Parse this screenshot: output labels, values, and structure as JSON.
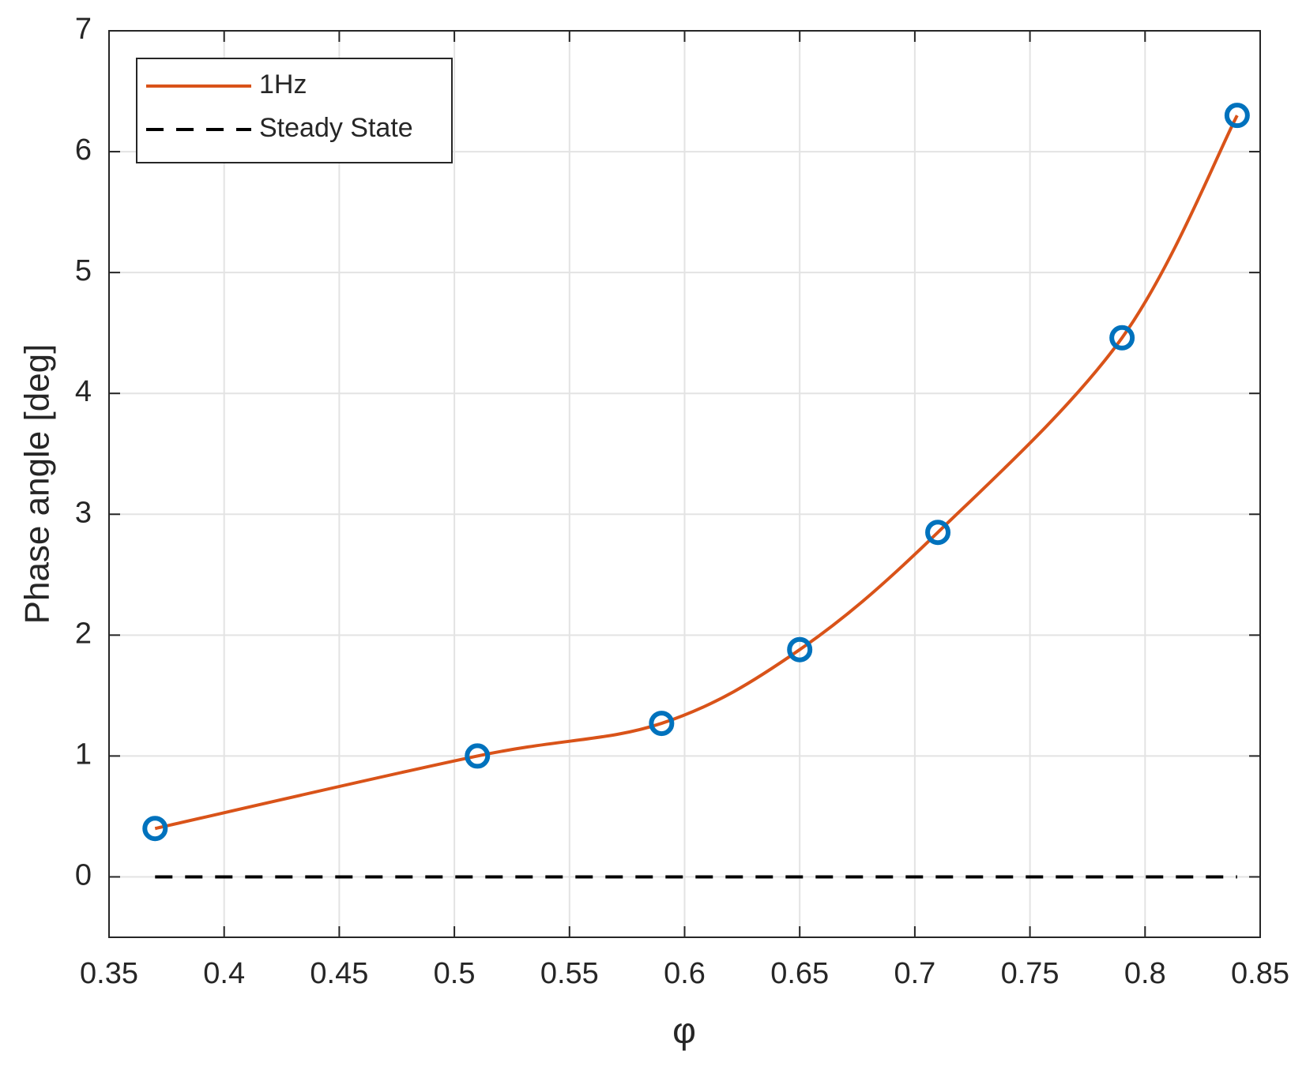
{
  "chart_data": {
    "type": "line",
    "xlabel": "φ",
    "ylabel": "Phase angle  [deg]",
    "xlim": [
      0.35,
      0.85
    ],
    "xticks": [
      0.35,
      0.4,
      0.45,
      0.5,
      0.55,
      0.6,
      0.65,
      0.7,
      0.75,
      0.8,
      0.85
    ],
    "ylim": [
      -0.5,
      7
    ],
    "yticks": [
      0,
      1,
      2,
      3,
      4,
      5,
      6,
      7
    ],
    "grid": true,
    "legend": "upper-left",
    "series": [
      {
        "name": "1Hz",
        "color": "#d95319",
        "line": "solid",
        "smooth": true,
        "x": [
          0.37,
          0.51,
          0.59,
          0.65,
          0.71,
          0.79,
          0.84
        ],
        "values": [
          0.4,
          1.0,
          1.27,
          1.88,
          2.85,
          4.46,
          6.3
        ]
      },
      {
        "name": "Steady State",
        "color": "#000000",
        "line": "dashed",
        "x": [
          0.37,
          0.84
        ],
        "values": [
          0,
          0
        ]
      },
      {
        "color": "#0072bd",
        "marker": "circle",
        "x": [
          0.37,
          0.51,
          0.59,
          0.65,
          0.71,
          0.79,
          0.84
        ],
        "values": [
          0.4,
          1.0,
          1.27,
          1.88,
          2.85,
          4.46,
          6.3
        ]
      }
    ]
  }
}
